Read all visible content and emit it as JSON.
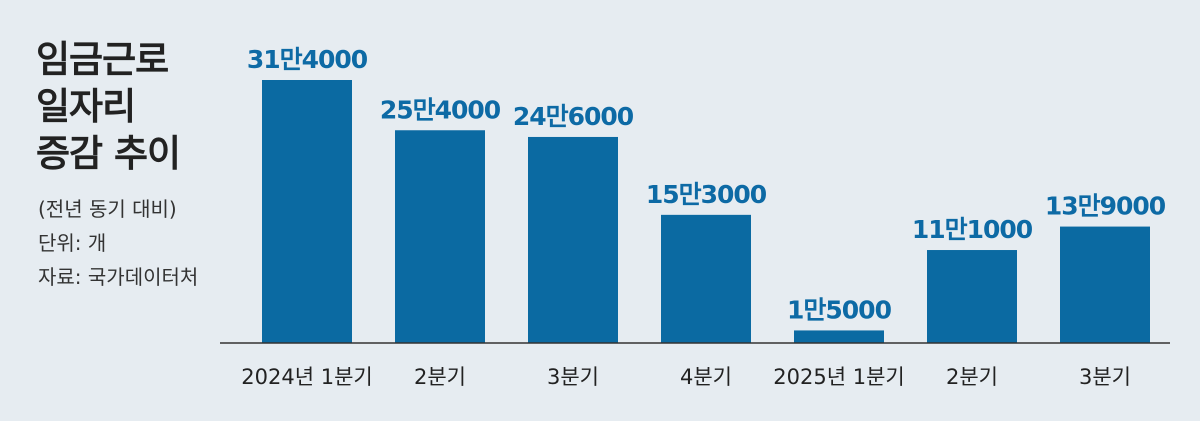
{
  "title_lines": [
    "임금근로",
    "일자리",
    "증감 추이"
  ],
  "meta": {
    "basis": "(전년 동기 대비)",
    "unit": "단위: 개",
    "source": "자료: 국가데이터처"
  },
  "colors": {
    "bar": "#0b6aa2",
    "label": "#0d6aa5",
    "background": "#e6ecf1"
  },
  "chart_data": {
    "type": "bar",
    "title": "임금근로 일자리 증감 추이",
    "categories": [
      "2024년 1분기",
      "2분기",
      "3분기",
      "4분기",
      "2025년 1분기",
      "2분기",
      "3분기"
    ],
    "values": [
      314000,
      254000,
      246000,
      153000,
      15000,
      111000,
      139000
    ],
    "value_labels": [
      "31만4000",
      "25만4000",
      "24만6000",
      "15만3000",
      "1만5000",
      "11만1000",
      "13만9000"
    ],
    "ylim": [
      0,
      314000
    ],
    "grid": false,
    "legend": "none"
  }
}
